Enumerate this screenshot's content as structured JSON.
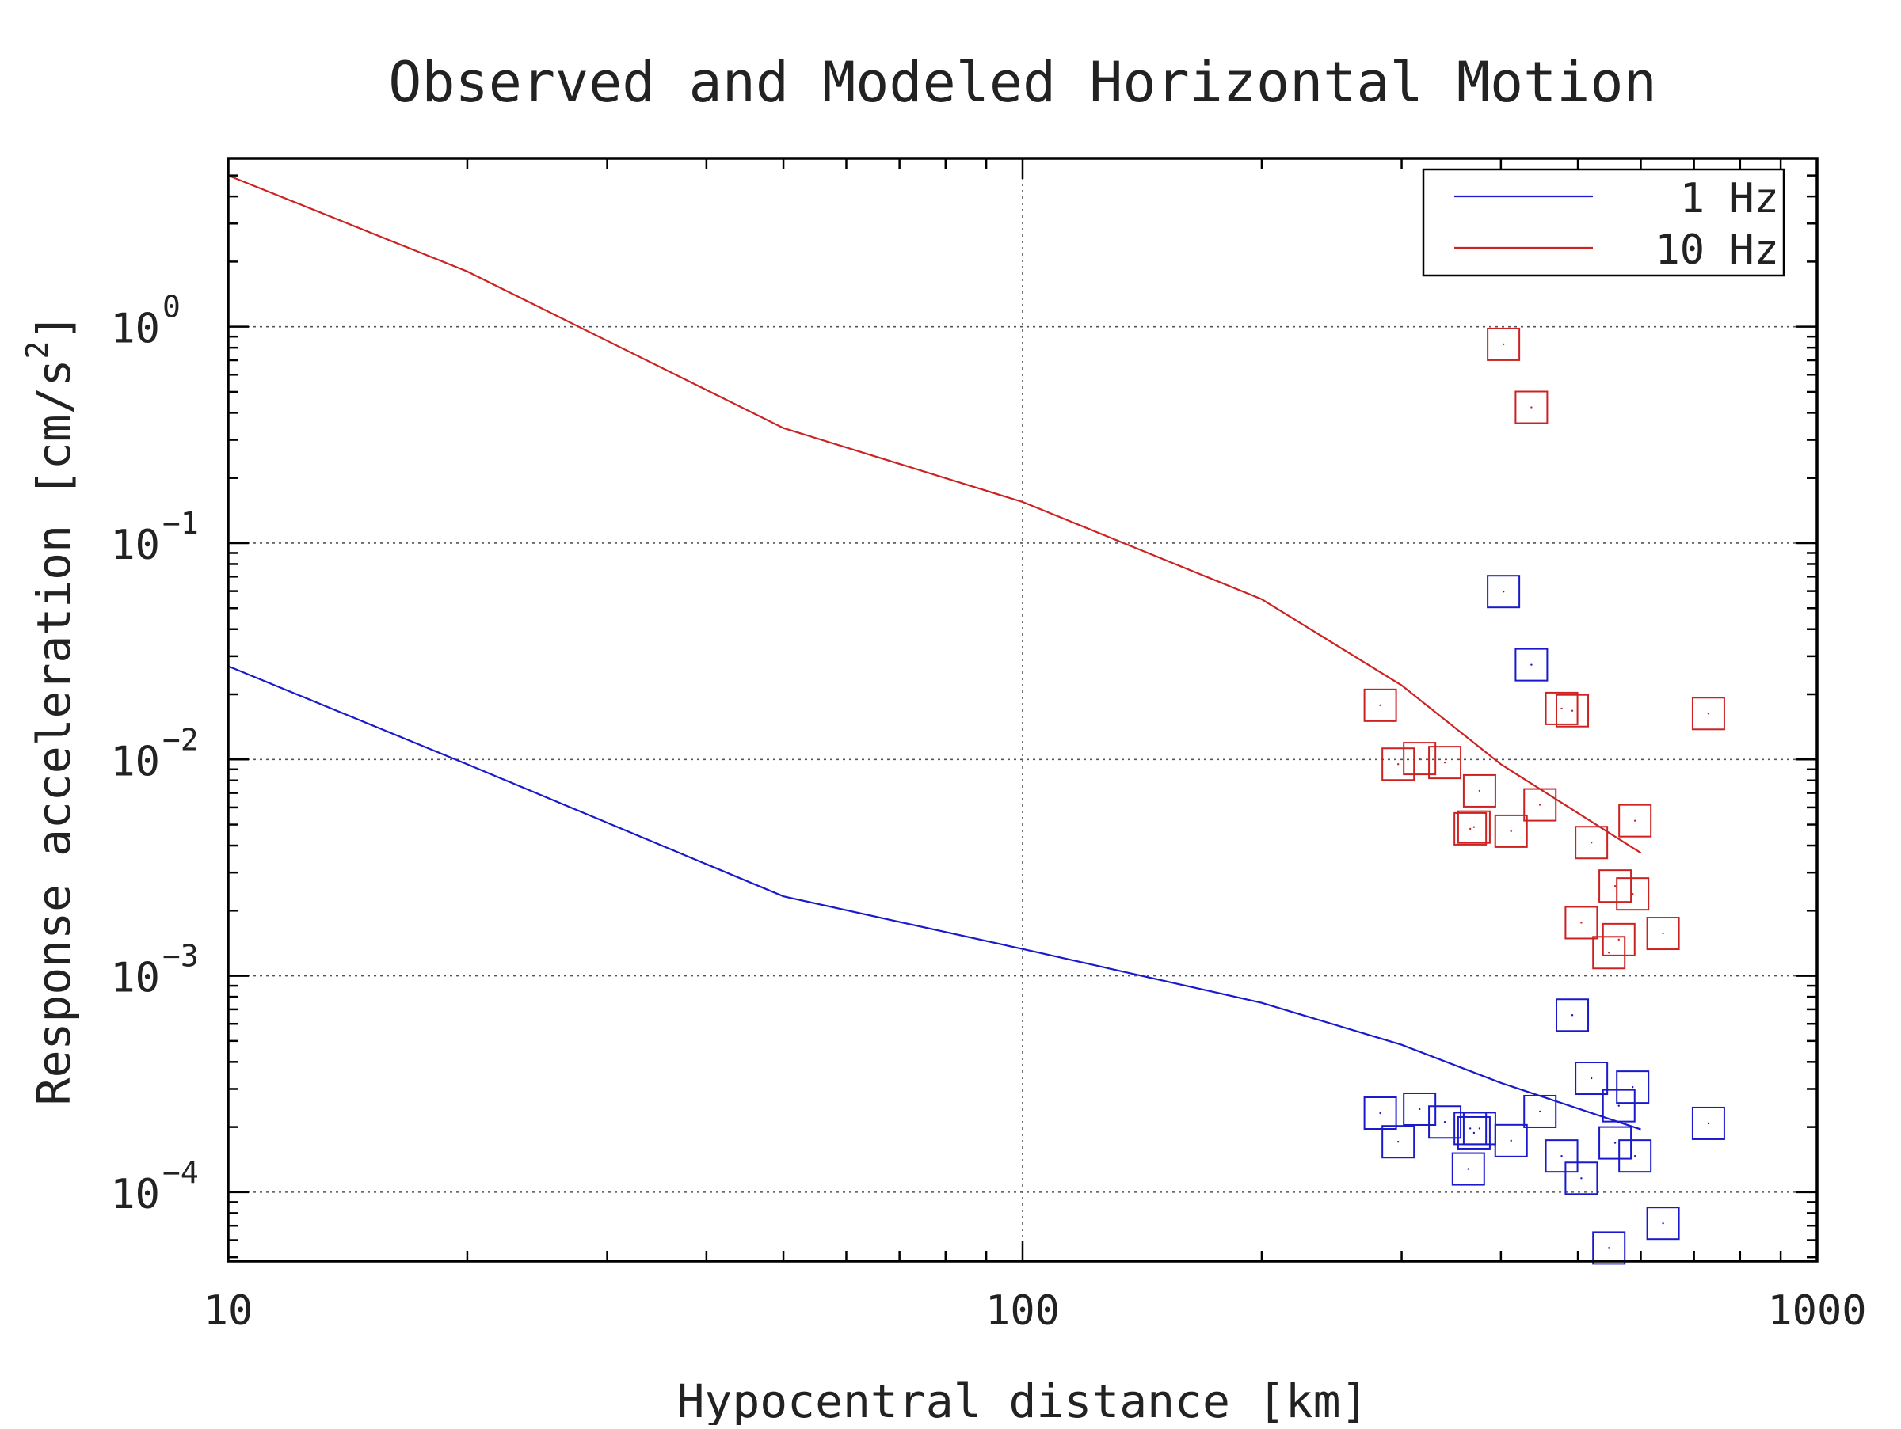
{
  "chart_data": {
    "type": "scatter",
    "title": "Observed and Modeled Horizontal Motion",
    "xlabel": "Hypocentral distance [km]",
    "ylabel_main": "Response acceleration [cm/s",
    "ylabel_sup": "2",
    "ylabel_tail": "]",
    "x_scale": "log",
    "y_scale": "log",
    "xlim": [
      10,
      1000
    ],
    "ylim": [
      4.8e-05,
      6
    ],
    "x_ticks": [
      {
        "value": 10,
        "label": "10"
      },
      {
        "value": 100,
        "label": "100"
      },
      {
        "value": 1000,
        "label": "1000"
      }
    ],
    "y_ticks": [
      {
        "value": 0.0001,
        "base": "10",
        "exp": "−4"
      },
      {
        "value": 0.001,
        "base": "10",
        "exp": "−3"
      },
      {
        "value": 0.01,
        "base": "10",
        "exp": "−2"
      },
      {
        "value": 0.1,
        "base": "10",
        "exp": "−1"
      },
      {
        "value": 1,
        "base": "10",
        "exp": "0"
      }
    ],
    "grid": true,
    "legend_position": "top-right",
    "series": [
      {
        "name": "1 Hz",
        "color": "#1a1acc",
        "model_curve": [
          [
            10,
            0.027
          ],
          [
            20,
            0.0095
          ],
          [
            50,
            0.00233
          ],
          [
            100,
            0.00133
          ],
          [
            200,
            0.00075
          ],
          [
            300,
            0.00048
          ],
          [
            400,
            0.00032
          ],
          [
            600,
            0.000195
          ]
        ],
        "observed": [
          [
            282,
            0.000232
          ],
          [
            297,
            0.000171
          ],
          [
            316,
            0.000242
          ],
          [
            340,
            0.000211
          ],
          [
            364,
            0.000128
          ],
          [
            366,
            0.000197
          ],
          [
            370,
            0.000188
          ],
          [
            376,
            0.000197
          ],
          [
            403,
            0.0597
          ],
          [
            412,
            0.000173
          ],
          [
            437,
            0.0274
          ],
          [
            448,
            0.000236
          ],
          [
            477,
            0.000147
          ],
          [
            492,
            0.000658
          ],
          [
            505,
            0.000116
          ],
          [
            520,
            0.000336
          ],
          [
            547,
            5.52e-05
          ],
          [
            557,
            0.000169
          ],
          [
            563,
            0.000251
          ],
          [
            586,
            0.000306
          ],
          [
            590,
            0.000147
          ],
          [
            640,
            7.18e-05
          ],
          [
            730,
            0.000208
          ]
        ]
      },
      {
        "name": "10 Hz",
        "color": "#cc2222",
        "model_curve": [
          [
            10,
            5.0
          ],
          [
            20,
            1.8
          ],
          [
            50,
            0.34
          ],
          [
            100,
            0.155
          ],
          [
            200,
            0.055
          ],
          [
            300,
            0.022
          ],
          [
            400,
            0.0095
          ],
          [
            600,
            0.0037
          ]
        ],
        "observed": [
          [
            282,
            0.0178
          ],
          [
            297,
            0.00951
          ],
          [
            316,
            0.0101
          ],
          [
            340,
            0.00968
          ],
          [
            366,
            0.00478
          ],
          [
            370,
            0.00487
          ],
          [
            376,
            0.00716
          ],
          [
            403,
            0.829
          ],
          [
            412,
            0.00466
          ],
          [
            437,
            0.424
          ],
          [
            448,
            0.00617
          ],
          [
            477,
            0.0172
          ],
          [
            492,
            0.0168
          ],
          [
            505,
            0.00176
          ],
          [
            520,
            0.00413
          ],
          [
            547,
            0.00128
          ],
          [
            557,
            0.0026
          ],
          [
            563,
            0.00147
          ],
          [
            586,
            0.00239
          ],
          [
            590,
            0.00521
          ],
          [
            640,
            0.00157
          ],
          [
            730,
            0.0163
          ]
        ]
      }
    ]
  }
}
